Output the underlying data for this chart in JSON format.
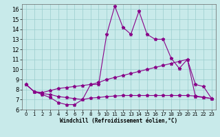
{
  "xlabel": "Windchill (Refroidissement éolien,°C)",
  "xlim": [
    -0.5,
    23.5
  ],
  "ylim": [
    6,
    16.5
  ],
  "xticks": [
    0,
    1,
    2,
    3,
    4,
    5,
    6,
    7,
    8,
    9,
    10,
    11,
    12,
    13,
    14,
    15,
    16,
    17,
    18,
    19,
    20,
    21,
    22,
    23
  ],
  "yticks": [
    6,
    7,
    8,
    9,
    10,
    11,
    12,
    13,
    14,
    15,
    16
  ],
  "bg_color": "#c8eaea",
  "line_color": "#880088",
  "line1_x": [
    0,
    1,
    2,
    3,
    4,
    5,
    6,
    7,
    8,
    9,
    10,
    11,
    12,
    13,
    14,
    15,
    16,
    17,
    18,
    19,
    20,
    21,
    22,
    23
  ],
  "line1_y": [
    8.5,
    7.8,
    7.5,
    7.2,
    6.7,
    6.5,
    6.5,
    7.0,
    8.5,
    8.5,
    13.5,
    16.3,
    14.2,
    13.5,
    15.8,
    13.5,
    13.0,
    13.0,
    11.1,
    10.1,
    11.0,
    7.3,
    7.2,
    7.1
  ],
  "line2_x": [
    0,
    1,
    2,
    3,
    4,
    5,
    6,
    7,
    8,
    9,
    10,
    11,
    12,
    13,
    14,
    15,
    16,
    17,
    18,
    19,
    20,
    21,
    22,
    23
  ],
  "line2_y": [
    8.5,
    7.8,
    7.6,
    7.5,
    7.3,
    7.2,
    7.1,
    7.0,
    7.15,
    7.2,
    7.3,
    7.35,
    7.4,
    7.4,
    7.4,
    7.4,
    7.4,
    7.4,
    7.4,
    7.4,
    7.4,
    7.35,
    7.25,
    7.1
  ],
  "line3_x": [
    0,
    1,
    2,
    3,
    4,
    5,
    6,
    7,
    8,
    9,
    10,
    11,
    12,
    13,
    14,
    15,
    16,
    17,
    18,
    19,
    20,
    21,
    22,
    23
  ],
  "line3_y": [
    8.5,
    7.8,
    7.7,
    7.9,
    8.1,
    8.2,
    8.3,
    8.4,
    8.5,
    8.7,
    9.0,
    9.2,
    9.4,
    9.6,
    9.8,
    10.0,
    10.2,
    10.4,
    10.6,
    10.8,
    11.0,
    8.5,
    8.3,
    7.1
  ]
}
